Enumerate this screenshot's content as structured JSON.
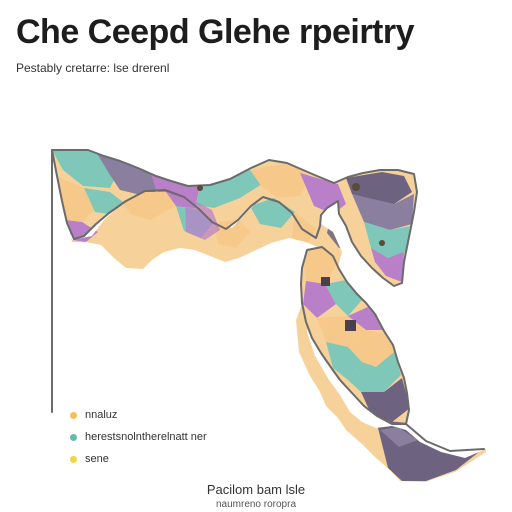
{
  "header": {
    "title": "Che Ceepd Glehe rpeirtry",
    "subtitle": "Pestably cretarre: lse drerenl"
  },
  "legend": {
    "items": [
      {
        "label": "nnaluz",
        "color": "#f4bf5b"
      },
      {
        "label": "herestsnolntherelnatt ner",
        "color": "#6bb8b1"
      },
      {
        "label": "sene",
        "color": "#f0d44a"
      }
    ]
  },
  "footer": {
    "line1": "Pacilom bam lsle",
    "line2": "naumreno roropra"
  },
  "colors": {
    "peach": "#f6c98a",
    "teal": "#7fc7b8",
    "purple": "#b980c9",
    "slate": "#6d6380",
    "dark": "#4a3f4f",
    "outline": "#6b6b6b"
  }
}
